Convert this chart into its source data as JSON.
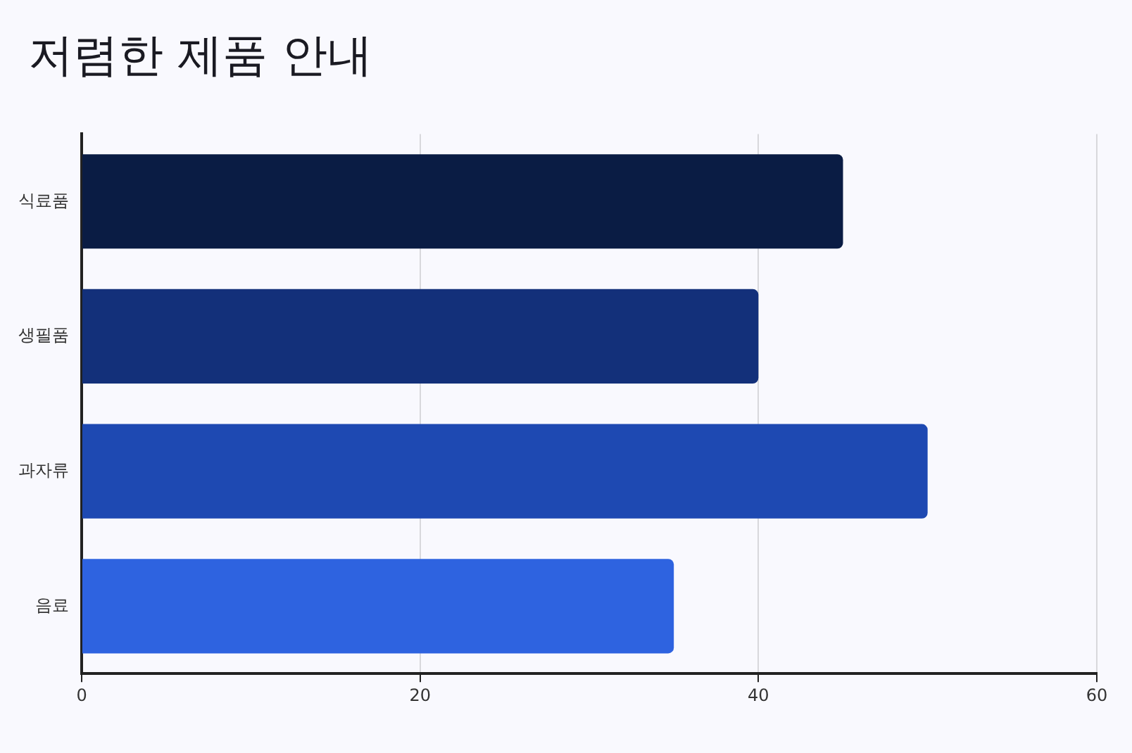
{
  "chart_data": {
    "type": "bar",
    "orientation": "horizontal",
    "title": "저렴한 제품 안내",
    "categories": [
      "식료품",
      "생필품",
      "과자류",
      "음료"
    ],
    "values": [
      45,
      40,
      50,
      35
    ],
    "colors": [
      "#0a1c44",
      "#13307a",
      "#1e49b2",
      "#2e63e0"
    ],
    "xlim": [
      0,
      60
    ],
    "xticks": [
      0,
      20,
      40,
      60
    ],
    "grid": "x",
    "legend": false
  }
}
